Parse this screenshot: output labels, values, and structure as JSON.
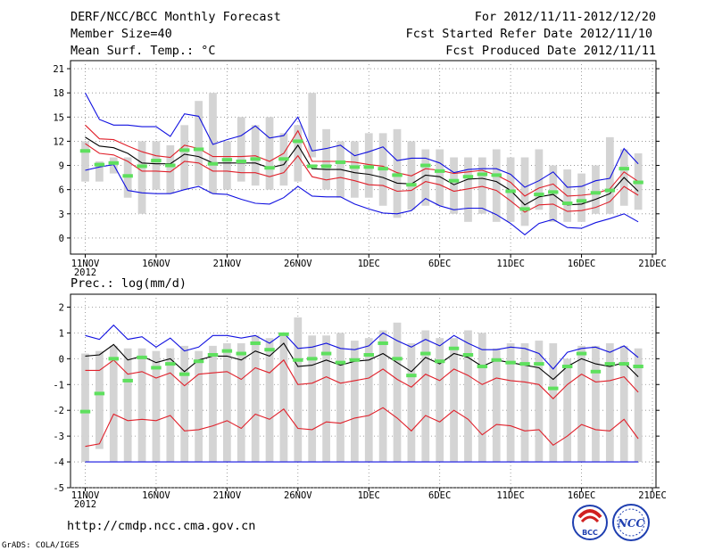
{
  "header": {
    "title": "DERF/NCC/BCC Monthly Forecast",
    "member_size": "Member Size=40",
    "variable": "Mean Surf. Temp.: °C",
    "forecast_period": "For 2012/11/11-2012/12/20",
    "start_date": "Fcst Started Refer Date 2012/11/10",
    "produced_date": "Fcst Produced Date 2012/11/11"
  },
  "footer": {
    "url": "http://cmdp.ncc.cma.gov.cn",
    "credit": "GrADS: COLA/IGES",
    "logo_bcc": "BCC",
    "logo_ncc": "NCC"
  },
  "colors": {
    "box": "#d4d4d4",
    "green": "#5ee05e",
    "black": "#000000",
    "red": "#e0202a",
    "blue": "#1010e0",
    "grid": "#888888"
  },
  "chart_data": [
    {
      "name": "temperature",
      "type": "line",
      "title": "Mean Surf. Temp.: °C",
      "x_labels": [
        "11NOV",
        "16NOV",
        "21NOV",
        "26NOV",
        "1DEC",
        "6DEC",
        "11DEC",
        "16DEC",
        "21DEC"
      ],
      "x_year": "2012",
      "day_range": [
        1,
        41
      ],
      "ylim": [
        -2,
        22
      ],
      "y_ticks": [
        0,
        3,
        6,
        9,
        12,
        15,
        18,
        21
      ],
      "box_top": [
        12,
        9.5,
        10,
        10,
        12,
        12,
        11.5,
        14,
        17,
        18,
        12,
        15,
        14,
        15,
        13,
        14,
        18,
        13.5,
        12,
        12,
        13,
        13,
        13.5,
        12,
        11,
        11,
        10,
        10,
        10,
        11,
        10,
        10,
        11,
        9,
        8.5,
        8,
        9,
        12.5,
        11,
        10.5
      ],
      "box_bottom": [
        7,
        7,
        8,
        5,
        3,
        6,
        5.5,
        6,
        6.5,
        5.5,
        6,
        7,
        6.5,
        6,
        6.5,
        7,
        10,
        6,
        5,
        5,
        5,
        4,
        2.5,
        3.5,
        4,
        4,
        3,
        2,
        3,
        2,
        2,
        1.5,
        3.5,
        2,
        2,
        2,
        3,
        3,
        4,
        3.5
      ],
      "green": [
        10.8,
        9.1,
        9.3,
        7.7,
        8.9,
        9.6,
        9,
        10.9,
        11,
        9.2,
        9.7,
        9.5,
        9.8,
        8.7,
        9.8,
        12,
        8.9,
        8.9,
        9.4,
        8.8,
        8.8,
        8.6,
        7.8,
        6.6,
        9,
        8.3,
        7.1,
        7.6,
        7.9,
        7.8,
        5.8,
        3.6,
        5.4,
        5.7,
        4.3,
        4.6,
        5.6,
        5.9,
        8.6,
        6.9
      ],
      "series": [
        {
          "name": "upper envelope",
          "color": "blue",
          "values": [
            18,
            14.7,
            14,
            14,
            13.8,
            13.8,
            12.6,
            15.4,
            15.1,
            11.6,
            12.2,
            12.7,
            13.9,
            12.4,
            12.7,
            15,
            10.8,
            11.1,
            11.5,
            10.2,
            10.7,
            11.3,
            9.6,
            9.9,
            9.9,
            9.3,
            8.1,
            8.5,
            8.6,
            8.6,
            7.9,
            6.3,
            7.1,
            8.2,
            6.3,
            6.4,
            7.1,
            7.4,
            11.1,
            9.2
          ]
        },
        {
          "name": "upper",
          "color": "red",
          "values": [
            14,
            12.3,
            12.2,
            11.4,
            10.7,
            10.2,
            10,
            11.5,
            11.1,
            10.1,
            10.1,
            10.1,
            10.2,
            9.5,
            10.5,
            13.3,
            9.5,
            9.5,
            9.5,
            9.4,
            9.1,
            8.9,
            8.1,
            7.7,
            8.6,
            8.4,
            8,
            8.2,
            8.4,
            7.8,
            6.9,
            5.2,
            6.2,
            6.7,
            5.2,
            5.3,
            5.5,
            6.1,
            8.2,
            7
          ]
        },
        {
          "name": "mean",
          "color": "black",
          "values": [
            12.5,
            11.4,
            11.2,
            10.5,
            9.3,
            9.2,
            9.2,
            10.4,
            10.1,
            9.3,
            9.3,
            9.3,
            9.3,
            8.7,
            9.1,
            11.5,
            8.6,
            8.5,
            8.5,
            8.1,
            7.9,
            7.5,
            6.8,
            6.7,
            7.8,
            7.6,
            6.6,
            7.3,
            7.4,
            7,
            5.9,
            4.1,
            5.1,
            5.4,
            4.1,
            4.2,
            4.8,
            5.5,
            7.5,
            5.8
          ]
        },
        {
          "name": "lower",
          "color": "red",
          "values": [
            11.7,
            10.5,
            10.3,
            9.5,
            8.3,
            8.3,
            8.2,
            9.5,
            9.3,
            8.3,
            8.3,
            8.1,
            8.1,
            7.6,
            8.1,
            10.2,
            7.6,
            7.2,
            7.5,
            7.1,
            6.6,
            6.5,
            5.8,
            5.9,
            7,
            6.6,
            5.8,
            6.1,
            6.4,
            5.9,
            4.6,
            3.2,
            4.1,
            4.2,
            3.3,
            3.4,
            3.8,
            4.5,
            6.4,
            5.3
          ]
        },
        {
          "name": "lower envelope",
          "color": "blue",
          "values": [
            8.4,
            8.8,
            9.1,
            5.9,
            5.6,
            5.5,
            5.5,
            6,
            6.4,
            5.5,
            5.4,
            4.8,
            4.3,
            4.2,
            5,
            6.4,
            5.2,
            5.1,
            5.1,
            4.2,
            3.6,
            3.1,
            3,
            3.4,
            4.9,
            4,
            3.5,
            3.7,
            3.7,
            2.9,
            1.8,
            0.4,
            1.8,
            2.3,
            1.3,
            1.2,
            1.9,
            2.4,
            3,
            2
          ]
        }
      ]
    },
    {
      "name": "precipitation",
      "type": "line",
      "title": "Prec.: log(mm/d)",
      "x_labels": [
        "11NOV",
        "16NOV",
        "21NOV",
        "26NOV",
        "1DEC",
        "6DEC",
        "11DEC",
        "16DEC",
        "21DEC"
      ],
      "x_year": "2012",
      "day_range": [
        1,
        41
      ],
      "ylim": [
        -5,
        2.5
      ],
      "y_ticks": [
        -5,
        -4,
        -3,
        -2,
        -1,
        0,
        1,
        2
      ],
      "box_top": [
        0.2,
        0.3,
        0.5,
        0.4,
        0.4,
        0.3,
        0.4,
        0.5,
        0.3,
        0.5,
        0.6,
        0.6,
        0.9,
        0.8,
        0.9,
        1.6,
        0.9,
        0.9,
        1,
        0.7,
        0.8,
        1.1,
        1.4,
        0.6,
        1.1,
        0.8,
        0.8,
        1.1,
        1,
        0.4,
        0.6,
        0.6,
        0.7,
        0.6,
        0,
        0.5,
        0.5,
        0.6,
        0.5,
        0.4
      ],
      "box_bottom": [
        -4,
        -3.5,
        -4,
        -4,
        -4,
        -4,
        -4,
        -4,
        -4,
        -4,
        -4,
        -4,
        -4,
        -4,
        -4,
        -4,
        -4,
        -4,
        -4,
        -4,
        -4,
        -4,
        -4,
        -4,
        -4,
        -4,
        -4,
        -4,
        -4,
        -4,
        -4,
        -4,
        -4,
        -4,
        -4,
        -4,
        -4,
        -4,
        -4,
        -4
      ],
      "baseline": -4,
      "green": [
        -2.05,
        -1.35,
        0,
        -0.85,
        0.05,
        -0.35,
        -0.2,
        -0.6,
        -0.1,
        0.15,
        0.3,
        0.2,
        0.6,
        0.35,
        0.95,
        -0.05,
        0,
        0.2,
        -0.15,
        -0.05,
        0.15,
        0.6,
        0,
        -0.65,
        0.2,
        -0.1,
        0.4,
        0.15,
        -0.3,
        -0.05,
        -0.15,
        -0.2,
        -0.2,
        -1.15,
        -0.3,
        0.2,
        -0.5,
        -0.2,
        -0.2,
        -0.3
      ],
      "series": [
        {
          "name": "upper envelope",
          "color": "blue",
          "values": [
            0.9,
            0.75,
            1.3,
            0.75,
            0.85,
            0.45,
            0.8,
            0.3,
            0.45,
            0.9,
            0.9,
            0.8,
            0.9,
            0.6,
            1,
            0.4,
            0.45,
            0.6,
            0.4,
            0.35,
            0.5,
            1,
            0.7,
            0.45,
            0.75,
            0.5,
            0.9,
            0.6,
            0.35,
            0.35,
            0.45,
            0.4,
            0.2,
            -0.4,
            0.25,
            0.4,
            0.45,
            0.25,
            0.5,
            0.05
          ]
        },
        {
          "name": "upper",
          "color": "black",
          "values": [
            0.1,
            0.15,
            0.55,
            -0.05,
            0.1,
            -0.15,
            0,
            -0.5,
            -0.05,
            0.1,
            0.1,
            -0.05,
            0.3,
            0.1,
            0.6,
            -0.3,
            -0.25,
            -0.05,
            -0.25,
            -0.1,
            -0.05,
            0.2,
            -0.15,
            -0.5,
            0.05,
            -0.2,
            0.2,
            0.05,
            -0.3,
            -0.05,
            -0.15,
            -0.25,
            -0.35,
            -0.8,
            -0.3,
            0,
            -0.2,
            -0.3,
            -0.15,
            -0.7
          ]
        },
        {
          "name": "mean",
          "color": "red",
          "values": [
            -0.45,
            -0.45,
            -0.05,
            -0.6,
            -0.5,
            -0.75,
            -0.55,
            -1.05,
            -0.6,
            -0.55,
            -0.5,
            -0.8,
            -0.35,
            -0.55,
            -0.05,
            -1,
            -0.95,
            -0.7,
            -0.95,
            -0.85,
            -0.75,
            -0.4,
            -0.8,
            -1.1,
            -0.6,
            -0.85,
            -0.4,
            -0.65,
            -1,
            -0.75,
            -0.85,
            -0.9,
            -1,
            -1.55,
            -1,
            -0.6,
            -0.9,
            -0.85,
            -0.7,
            -1.3
          ]
        },
        {
          "name": "lower",
          "color": "red",
          "values": [
            -3.4,
            -3.3,
            -2.15,
            -2.4,
            -2.35,
            -2.4,
            -2.2,
            -2.8,
            -2.75,
            -2.6,
            -2.4,
            -2.7,
            -2.15,
            -2.35,
            -1.95,
            -2.7,
            -2.75,
            -2.45,
            -2.5,
            -2.3,
            -2.2,
            -1.9,
            -2.3,
            -2.8,
            -2.2,
            -2.45,
            -2,
            -2.35,
            -2.95,
            -2.55,
            -2.6,
            -2.8,
            -2.75,
            -3.35,
            -3,
            -2.55,
            -2.75,
            -2.8,
            -2.35,
            -3.1
          ]
        }
      ]
    }
  ]
}
